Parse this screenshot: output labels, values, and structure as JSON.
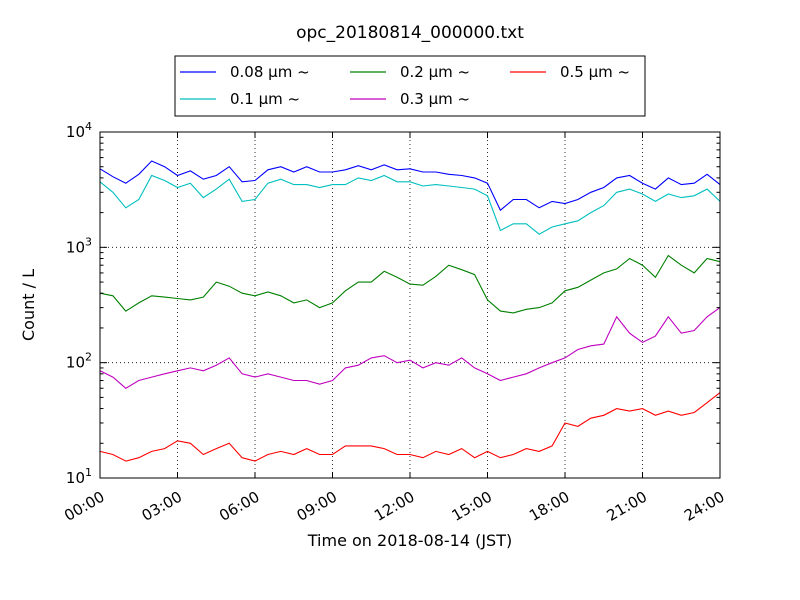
{
  "chart_data": {
    "type": "line",
    "title": "opc_20180814_000000.txt",
    "xlabel": "Time on 2018-08-14 (JST)",
    "ylabel": "Count / L",
    "x_unit": "hours",
    "xlim": [
      0,
      24
    ],
    "ylim": [
      10,
      10000
    ],
    "yscale": "log",
    "grid": true,
    "legend_position": "top-center",
    "x_ticks": [
      "00:00",
      "03:00",
      "06:00",
      "09:00",
      "12:00",
      "15:00",
      "18:00",
      "21:00",
      "24:00"
    ],
    "y_ticks": [
      {
        "base": "10",
        "exp": "1"
      },
      {
        "base": "10",
        "exp": "2"
      },
      {
        "base": "10",
        "exp": "3"
      },
      {
        "base": "10",
        "exp": "4"
      }
    ],
    "x": [
      0,
      0.5,
      1,
      1.5,
      2,
      2.5,
      3,
      3.5,
      4,
      4.5,
      5,
      5.5,
      6,
      6.5,
      7,
      7.5,
      8,
      8.5,
      9,
      9.5,
      10,
      10.5,
      11,
      11.5,
      12,
      12.5,
      13,
      13.5,
      14,
      14.5,
      15,
      15.5,
      16,
      16.5,
      17,
      17.5,
      18,
      18.5,
      19,
      19.5,
      20,
      20.5,
      21,
      21.5,
      22,
      22.5,
      23,
      23.5,
      24
    ],
    "series": [
      {
        "name": "0.08 μm ~",
        "color": "#0000ff",
        "values": [
          4800,
          4100,
          3600,
          4300,
          5600,
          5000,
          4200,
          4600,
          3900,
          4200,
          5000,
          3700,
          3800,
          4700,
          5000,
          4500,
          5000,
          4500,
          4500,
          4700,
          5100,
          4700,
          5200,
          4700,
          4800,
          4500,
          4500,
          4300,
          4200,
          4000,
          3600,
          2100,
          2600,
          2600,
          2200,
          2500,
          2400,
          2600,
          3000,
          3300,
          4000,
          4200,
          3600,
          3200,
          4000,
          3500,
          3600,
          4300,
          3500
        ]
      },
      {
        "name": "0.1 μm ~",
        "color": "#00bfbf",
        "values": [
          3700,
          3000,
          2200,
          2600,
          4200,
          3800,
          3300,
          3600,
          2700,
          3200,
          3900,
          2500,
          2600,
          3600,
          3900,
          3500,
          3500,
          3300,
          3500,
          3500,
          4000,
          3800,
          4200,
          3700,
          3700,
          3400,
          3500,
          3400,
          3300,
          3200,
          2800,
          1400,
          1600,
          1600,
          1300,
          1500,
          1600,
          1700,
          2000,
          2300,
          3000,
          3200,
          2900,
          2500,
          2900,
          2700,
          2800,
          3200,
          2500
        ]
      },
      {
        "name": "0.2 μm ~",
        "color": "#008000",
        "values": [
          400,
          380,
          280,
          330,
          380,
          370,
          360,
          350,
          370,
          500,
          460,
          400,
          380,
          410,
          380,
          330,
          350,
          300,
          330,
          420,
          500,
          500,
          620,
          550,
          480,
          470,
          560,
          700,
          640,
          580,
          350,
          280,
          270,
          290,
          300,
          330,
          420,
          450,
          520,
          600,
          650,
          800,
          700,
          550,
          850,
          700,
          600,
          800,
          750
        ]
      },
      {
        "name": "0.3 μm ~",
        "color": "#bf00bf",
        "values": [
          85,
          75,
          60,
          70,
          75,
          80,
          85,
          90,
          85,
          95,
          110,
          80,
          75,
          80,
          75,
          70,
          70,
          65,
          70,
          90,
          95,
          110,
          115,
          100,
          105,
          90,
          100,
          95,
          110,
          90,
          80,
          70,
          75,
          80,
          90,
          100,
          110,
          130,
          140,
          145,
          250,
          180,
          150,
          170,
          250,
          180,
          190,
          250,
          300
        ]
      },
      {
        "name": "0.5 μm ~",
        "color": "#ff0000",
        "values": [
          17,
          16,
          14,
          15,
          17,
          18,
          21,
          20,
          16,
          18,
          20,
          15,
          14,
          16,
          17,
          16,
          18,
          16,
          16,
          19,
          19,
          19,
          18,
          16,
          16,
          15,
          17,
          16,
          18,
          15,
          17,
          15,
          16,
          18,
          17,
          19,
          30,
          28,
          33,
          35,
          40,
          38,
          40,
          35,
          38,
          35,
          37,
          45,
          55
        ]
      }
    ]
  }
}
